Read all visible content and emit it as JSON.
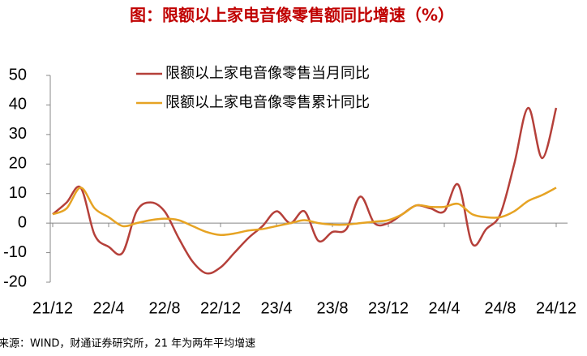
{
  "chart_data": {
    "type": "line",
    "title": "图：限额以上家电音像零售额同比增速（%）",
    "source": "来源：WIND，财通证券研究所，21 年为两年平均增速",
    "categories": [
      "21/12",
      null,
      null,
      null,
      "22/4",
      null,
      null,
      null,
      "22/8",
      null,
      null,
      null,
      "22/12",
      null,
      null,
      null,
      "23/4",
      null,
      null,
      null,
      "23/8",
      null,
      null,
      null,
      "23/12",
      null,
      null,
      null,
      "24/4",
      null,
      null,
      null,
      "24/8",
      null,
      null,
      null,
      "24/12"
    ],
    "series": [
      {
        "name": "限额以上家电音像零售当月同比",
        "color": "#b5403a",
        "values": [
          3,
          7,
          12,
          -4,
          -8,
          -10,
          4,
          7,
          4,
          -5,
          -13,
          -17,
          -15,
          -10,
          -5,
          -1,
          4,
          0,
          4,
          -6,
          -3,
          -2,
          9,
          0,
          0,
          3,
          6,
          5,
          4,
          13,
          -7,
          -2,
          3,
          20,
          39,
          22,
          39
        ]
      },
      {
        "name": "限额以上家电音像零售累计同比",
        "color": "#e6a323",
        "values": [
          3,
          5,
          12,
          5,
          2,
          -1,
          0,
          1,
          1.5,
          1,
          -1,
          -3,
          -4,
          -3.5,
          -2.5,
          -2,
          -1,
          0,
          1,
          0,
          -0.5,
          -0.5,
          0,
          0.5,
          1,
          3,
          6,
          5.5,
          5.5,
          6.5,
          3,
          2,
          2,
          4,
          7.5,
          9.5,
          12
        ]
      }
    ],
    "ylim": [
      -20,
      50
    ],
    "yticks": [
      -20,
      -10,
      0,
      10,
      20,
      30,
      40,
      50
    ]
  }
}
